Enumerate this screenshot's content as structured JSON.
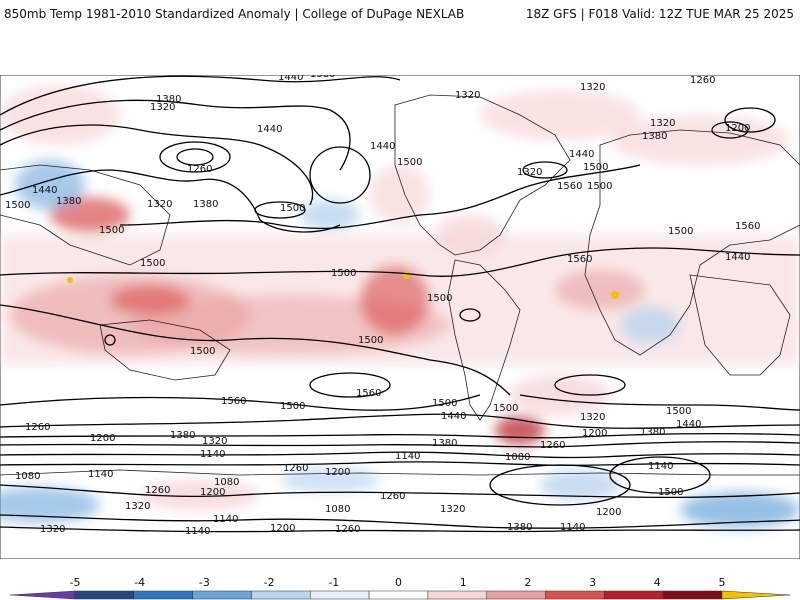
{
  "header": {
    "left": "850mb Temp 1981-2010 Standardized Anomaly | College of DuPage NEXLAB",
    "right": "18Z GFS | F018 Valid: 12Z TUE MAR 25 2025"
  },
  "colorbar": {
    "ticks": [
      "-5",
      "-4",
      "-3",
      "-2",
      "-1",
      "0",
      "1",
      "2",
      "3",
      "4",
      "5"
    ],
    "colors": [
      "#6a3aa8",
      "#25477f",
      "#2f79c2",
      "#6aa6dc",
      "#b9d4ee",
      "#e6eef7",
      "#ffffff",
      "#f6d6d6",
      "#eaa0a0",
      "#d9504f",
      "#b81f2a",
      "#7d1019",
      "#f2c200"
    ]
  },
  "contour_labels": [
    {
      "id": "a",
      "text": "1380"
    },
    {
      "id": "b",
      "text": "1440"
    },
    {
      "id": "c",
      "text": "1380"
    },
    {
      "id": "d",
      "text": "1320"
    },
    {
      "id": "e",
      "text": "1440"
    },
    {
      "id": "f",
      "text": "1260"
    },
    {
      "id": "g",
      "text": "1440"
    },
    {
      "id": "h",
      "text": "1380"
    },
    {
      "id": "i",
      "text": "1500"
    },
    {
      "id": "j",
      "text": "1380"
    },
    {
      "id": "k",
      "text": "1320"
    },
    {
      "id": "l",
      "text": "1440"
    },
    {
      "id": "m",
      "text": "1500"
    },
    {
      "id": "n",
      "text": "1500"
    },
    {
      "id": "o",
      "text": "1500"
    },
    {
      "id": "p",
      "text": "1320"
    },
    {
      "id": "q",
      "text": "1440"
    },
    {
      "id": "r",
      "text": "1500"
    },
    {
      "id": "s",
      "text": "1320"
    },
    {
      "id": "t",
      "text": "1560"
    },
    {
      "id": "u",
      "text": "1500"
    },
    {
      "id": "v",
      "text": "1320"
    },
    {
      "id": "w",
      "text": "1260"
    },
    {
      "id": "x",
      "text": "1320"
    },
    {
      "id": "y",
      "text": "1380"
    },
    {
      "id": "z",
      "text": "1200"
    },
    {
      "id": "aa",
      "text": "1440"
    },
    {
      "id": "ab",
      "text": "1500"
    },
    {
      "id": "ac",
      "text": "1500"
    },
    {
      "id": "ad",
      "text": "1560"
    },
    {
      "id": "ae",
      "text": "1500"
    },
    {
      "id": "af",
      "text": "1560"
    },
    {
      "id": "ag",
      "text": "1500"
    },
    {
      "id": "ah",
      "text": "1500"
    },
    {
      "id": "ai",
      "text": "1500"
    },
    {
      "id": "aj",
      "text": "1560"
    },
    {
      "id": "ak",
      "text": "1500"
    },
    {
      "id": "al",
      "text": "1560"
    },
    {
      "id": "am",
      "text": "1500"
    },
    {
      "id": "an",
      "text": "1440"
    },
    {
      "id": "ao",
      "text": "1500"
    },
    {
      "id": "ap",
      "text": "1320"
    },
    {
      "id": "aq",
      "text": "1200"
    },
    {
      "id": "ar",
      "text": "1380"
    },
    {
      "id": "as",
      "text": "1440"
    },
    {
      "id": "at",
      "text": "1500"
    },
    {
      "id": "au",
      "text": "1260"
    },
    {
      "id": "av",
      "text": "1200"
    },
    {
      "id": "aw",
      "text": "1380"
    },
    {
      "id": "ax",
      "text": "1320"
    },
    {
      "id": "ay",
      "text": "1380"
    },
    {
      "id": "az",
      "text": "1260"
    },
    {
      "id": "ba",
      "text": "1140"
    },
    {
      "id": "bb",
      "text": "1260"
    },
    {
      "id": "bc",
      "text": "1200"
    },
    {
      "id": "bd",
      "text": "1140"
    },
    {
      "id": "be",
      "text": "1080"
    },
    {
      "id": "bf",
      "text": "1140"
    },
    {
      "id": "bg",
      "text": "1080"
    },
    {
      "id": "bh",
      "text": "1140"
    },
    {
      "id": "bi",
      "text": "1080"
    },
    {
      "id": "bj",
      "text": "1260"
    },
    {
      "id": "bk",
      "text": "1200"
    },
    {
      "id": "bl",
      "text": "1320"
    },
    {
      "id": "bm",
      "text": "1140"
    },
    {
      "id": "bn",
      "text": "1080"
    },
    {
      "id": "bo",
      "text": "1260"
    },
    {
      "id": "bp",
      "text": "1320"
    },
    {
      "id": "bq",
      "text": "1380"
    },
    {
      "id": "br",
      "text": "1140"
    },
    {
      "id": "bs",
      "text": "1200"
    },
    {
      "id": "bt",
      "text": "1260"
    },
    {
      "id": "bu",
      "text": "1320"
    },
    {
      "id": "bv",
      "text": "1140"
    },
    {
      "id": "bw",
      "text": "1200"
    },
    {
      "id": "bx",
      "text": "1500"
    }
  ]
}
